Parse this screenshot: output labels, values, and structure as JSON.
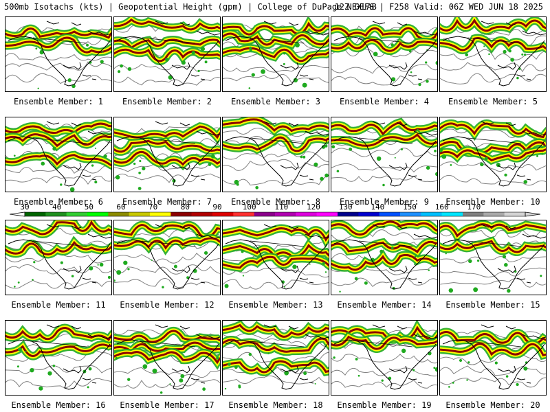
{
  "header": {
    "left": "500mb Isotachs (kts) | Geopotential Height (gpm) | College of DuPage NEXLAB",
    "right": "12Z GEFS | F258 Valid: 06Z WED JUN 18 2025"
  },
  "panels": [
    {
      "label": "Ensemble Member: 1"
    },
    {
      "label": "Ensemble Member: 2"
    },
    {
      "label": "Ensemble Member: 3"
    },
    {
      "label": "Ensemble Member: 4"
    },
    {
      "label": "Ensemble Member: 5"
    },
    {
      "label": "Ensemble Member: 6"
    },
    {
      "label": "Ensemble Member: 7"
    },
    {
      "label": "Ensemble Member: 8"
    },
    {
      "label": "Ensemble Member: 9"
    },
    {
      "label": "Ensemble Member: 10"
    },
    {
      "label": "Ensemble Member: 11"
    },
    {
      "label": "Ensemble Member: 12"
    },
    {
      "label": "Ensemble Member: 13"
    },
    {
      "label": "Ensemble Member: 14"
    },
    {
      "label": "Ensemble Member: 15"
    },
    {
      "label": "Ensemble Member: 16"
    },
    {
      "label": "Ensemble Member: 17"
    },
    {
      "label": "Ensemble Member: 18"
    },
    {
      "label": "Ensemble Member: 19"
    },
    {
      "label": "Ensemble Member: 20"
    }
  ],
  "colorbar": {
    "ticks": [
      "30",
      "40",
      "50",
      "60",
      "70",
      "80",
      "90",
      "100",
      "110",
      "120",
      "130",
      "140",
      "150",
      "160",
      "170"
    ],
    "colors": [
      "#006400",
      "#1f8f1f",
      "#32cd32",
      "#00ff00",
      "#8b8b00",
      "#c8c800",
      "#ffff00",
      "#8b0000",
      "#b00000",
      "#dd0000",
      "#ff3030",
      "#8b008b",
      "#b000b0",
      "#dd00dd",
      "#ff00ff",
      "#00008b",
      "#0000cd",
      "#0050ff",
      "#1e90ff",
      "#00bfff",
      "#00e5ff",
      "#808080",
      "#a9a9a9",
      "#d3d3d3"
    ]
  },
  "colors": {
    "jet_core": "#8b0000",
    "jet_mid": "#ffff00",
    "jet_outer": "#1faa1f",
    "height_contour": "#808080",
    "coastline": "#000000"
  }
}
